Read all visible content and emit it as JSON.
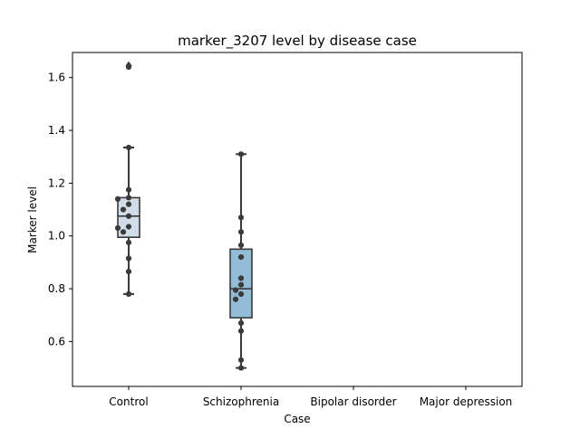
{
  "chart_data": {
    "type": "box",
    "title": "marker_3207 level by disease case",
    "xlabel": "Case",
    "ylabel": "Marker level",
    "categories": [
      "Control",
      "Schizophrenia",
      "Bipolar disorder",
      "Major depression"
    ],
    "ylim": [
      0.43,
      1.695
    ],
    "yticks": [
      0.6,
      0.8,
      1.0,
      1.2,
      1.4,
      1.6
    ],
    "ytick_labels": [
      "0.6",
      "0.8",
      "1.0",
      "1.2",
      "1.4",
      "1.6"
    ],
    "grid": false,
    "legend": "none",
    "boxes": [
      {
        "category": "Control",
        "whisker_low": 0.78,
        "q1": 0.995,
        "median": 1.075,
        "q3": 1.145,
        "whisker_high": 1.335,
        "outliers": [
          1.645
        ],
        "color": "#d0dde8"
      },
      {
        "category": "Schizophrenia",
        "whisker_low": 0.5,
        "q1": 0.69,
        "median": 0.8,
        "q3": 0.95,
        "whisker_high": 1.31,
        "outliers": [],
        "color": "#93bdd6"
      }
    ],
    "points": [
      {
        "category": "Control",
        "values": [
          1.64,
          1.335,
          1.175,
          1.145,
          1.14,
          1.12,
          1.1,
          1.075,
          1.035,
          1.03,
          1.015,
          0.975,
          0.915,
          0.865,
          0.78
        ]
      },
      {
        "category": "Schizophrenia",
        "values": [
          1.31,
          1.07,
          1.015,
          0.965,
          0.92,
          0.84,
          0.815,
          0.795,
          0.78,
          0.76,
          0.67,
          0.64,
          0.53,
          0.5
        ]
      }
    ],
    "box_edge_color": "#3a3a3a",
    "point_color": "#3a3a3a"
  }
}
